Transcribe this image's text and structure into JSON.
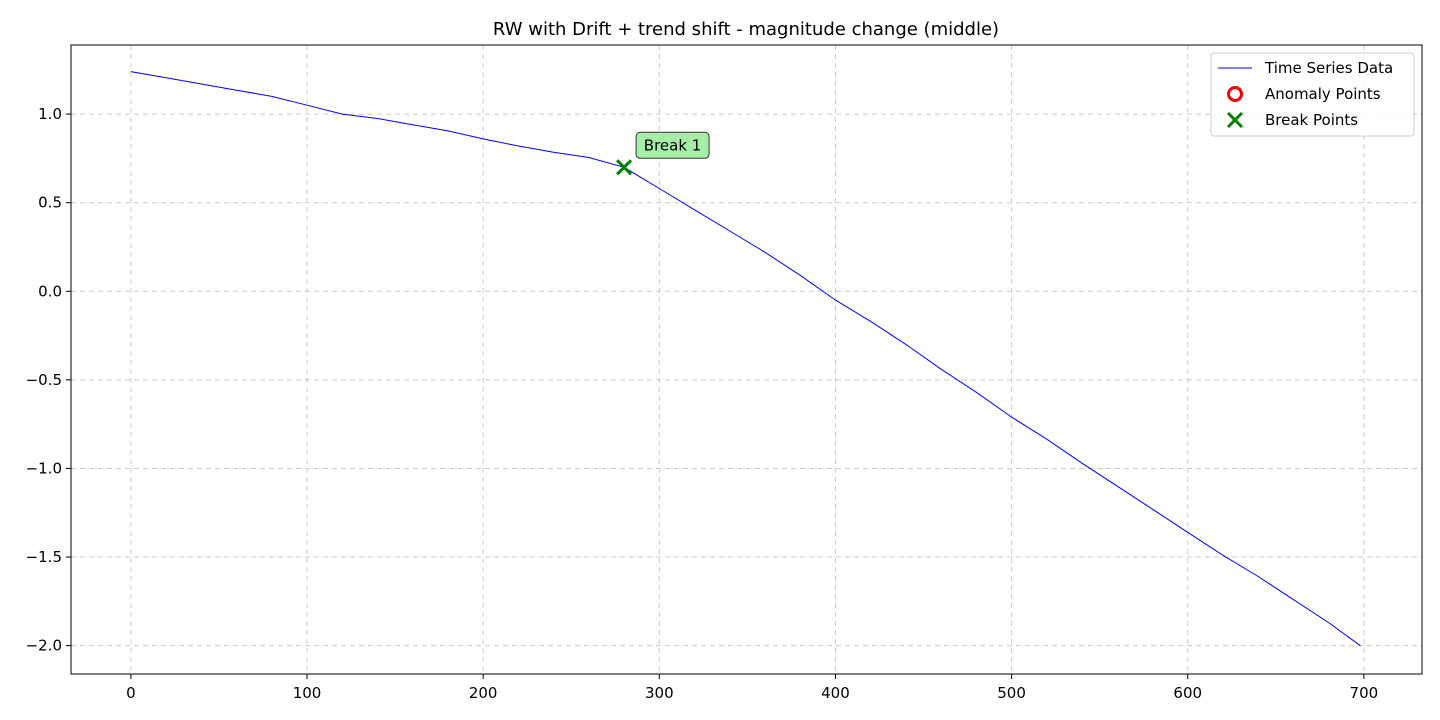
{
  "chart_data": {
    "type": "line",
    "title": "RW with Drift + trend shift - magnitude change (middle)",
    "xlabel": "",
    "ylabel": "",
    "xlim": [
      -34,
      733
    ],
    "ylim": [
      -2.16,
      1.39
    ],
    "x_ticks": [
      0,
      100,
      200,
      300,
      400,
      500,
      600,
      700
    ],
    "x_tick_labels": [
      "0",
      "100",
      "200",
      "300",
      "400",
      "500",
      "600",
      "700"
    ],
    "y_ticks": [
      1.0,
      0.5,
      0.0,
      -0.5,
      -1.0,
      -1.5,
      -2.0
    ],
    "y_tick_labels": [
      "1.0",
      "0.5",
      "0.0",
      "−0.5",
      "−1.0",
      "−1.5",
      "−2.0"
    ],
    "grid": true,
    "legend_position": "top-right",
    "series": [
      {
        "name": "Time Series Data",
        "color": "#0000ff",
        "x": [
          0,
          20,
          40,
          60,
          80,
          100,
          120,
          140,
          160,
          180,
          200,
          220,
          240,
          260,
          280,
          290,
          300,
          320,
          340,
          360,
          380,
          400,
          420,
          440,
          460,
          480,
          500,
          520,
          540,
          560,
          580,
          600,
          620,
          640,
          660,
          680,
          698
        ],
        "y": [
          1.24,
          1.205,
          1.17,
          1.135,
          1.1,
          1.05,
          1.0,
          0.975,
          0.94,
          0.905,
          0.86,
          0.82,
          0.785,
          0.755,
          0.7,
          0.64,
          0.58,
          0.46,
          0.34,
          0.22,
          0.09,
          -0.05,
          -0.17,
          -0.3,
          -0.44,
          -0.57,
          -0.71,
          -0.835,
          -0.97,
          -1.1,
          -1.23,
          -1.36,
          -1.49,
          -1.61,
          -1.74,
          -1.87,
          -2.0
        ]
      }
    ],
    "anomaly_points": {
      "name": "Anomaly Points",
      "color": "#ff0000",
      "points": []
    },
    "break_points": {
      "name": "Break Points",
      "color": "#008000",
      "points": [
        {
          "x": 280,
          "y": 0.7,
          "label": "Break 1"
        }
      ]
    }
  }
}
